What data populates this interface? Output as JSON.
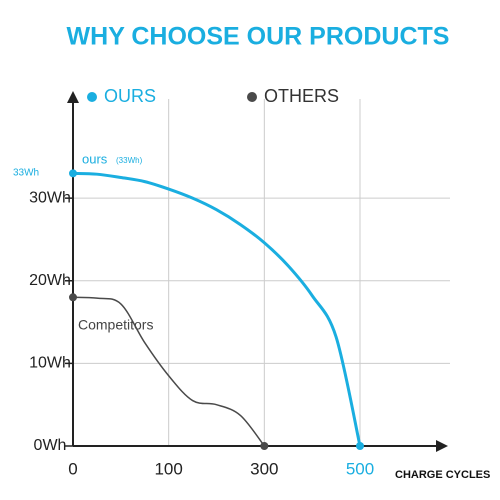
{
  "chart_data": {
    "type": "line",
    "title": "WHY CHOOSE OUR PRODUCTS",
    "x_label": "CHARGE CYCLES",
    "categories": [
      "0",
      null,
      null,
      null,
      "100",
      null,
      null,
      null,
      "300",
      null,
      null,
      null,
      "500"
    ],
    "series": [
      {
        "name": "OURS",
        "color": "#1aaee0",
        "values": [
          33,
          32.9,
          32.5,
          32.0,
          31.1,
          30.0,
          28.6,
          26.8,
          24.6,
          21.8,
          18.2,
          13.2,
          0
        ]
      },
      {
        "name": "OTHERS",
        "color": "#4a4a4a",
        "values": [
          18,
          17.9,
          17.2,
          12.5,
          8.5,
          5.5,
          5,
          3.7,
          0,
          null,
          null,
          null,
          null
        ]
      }
    ],
    "ylim": [
      0,
      42
    ],
    "yticks": [
      {
        "value": 0,
        "label": "0Wh"
      },
      {
        "value": 10,
        "label": "10Wh"
      },
      {
        "value": 20,
        "label": "20Wh"
      },
      {
        "value": 30,
        "label": "30Wh"
      }
    ],
    "grid": true,
    "annotations": {
      "ours_name": "ours",
      "ours_capacity": "(33Wh)",
      "ours_start": "33Wh",
      "others_name": "Competitors"
    }
  }
}
